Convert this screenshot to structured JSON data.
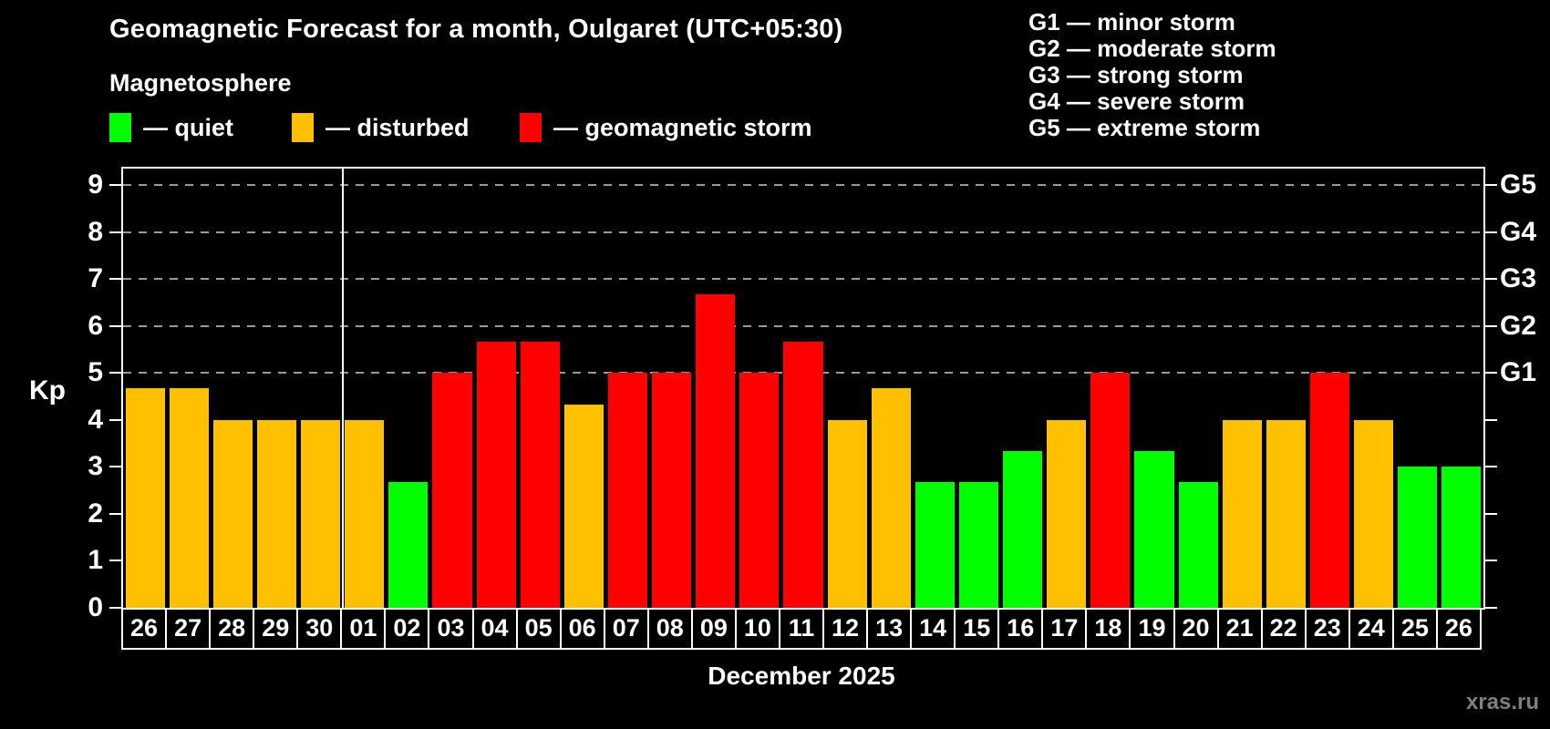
{
  "header": {
    "title": "Geomagnetic Forecast for a month, Oulgaret (UTC+05:30)",
    "subtitle": "Magnetosphere"
  },
  "legend": {
    "items": [
      {
        "state": "quiet",
        "label": "— quiet",
        "color": "#00ff00"
      },
      {
        "state": "disturbed",
        "label": "— disturbed",
        "color": "#ffc000"
      },
      {
        "state": "storm",
        "label": "— geomagnetic storm",
        "color": "#ff0000"
      }
    ]
  },
  "g_legend": {
    "items": [
      {
        "text": "G1 — minor storm"
      },
      {
        "text": "G2 — moderate storm"
      },
      {
        "text": "G3 — strong storm"
      },
      {
        "text": "G4 — severe storm"
      },
      {
        "text": "G5 — extreme storm"
      }
    ]
  },
  "chart_data": {
    "type": "bar",
    "title": "Geomagnetic Forecast for a month, Oulgaret (UTC+05:30)",
    "subtitle": "Magnetosphere",
    "ylabel": "Kp",
    "xlabel": "December 2025",
    "ylim": [
      0,
      9.35
    ],
    "yticks": [
      0,
      1,
      2,
      3,
      4,
      5,
      6,
      7,
      8,
      9
    ],
    "gridlines_at": [
      5,
      6,
      7,
      8,
      9
    ],
    "grid_style": "dashed-horizontal",
    "legend_position": "top-left",
    "categories": [
      "26",
      "27",
      "28",
      "29",
      "30",
      "01",
      "02",
      "03",
      "04",
      "05",
      "06",
      "07",
      "08",
      "09",
      "10",
      "11",
      "12",
      "13",
      "14",
      "15",
      "16",
      "17",
      "18",
      "19",
      "20",
      "21",
      "22",
      "23",
      "24",
      "25",
      "26"
    ],
    "values": [
      4.67,
      4.67,
      4,
      4,
      4,
      4,
      2.67,
      5,
      5.67,
      5.67,
      4.33,
      5,
      5,
      6.67,
      5,
      5.67,
      4,
      4.67,
      2.67,
      2.67,
      3.33,
      4,
      5,
      3.33,
      2.67,
      4,
      4,
      5,
      4,
      3,
      3
    ],
    "states": [
      "disturbed",
      "disturbed",
      "disturbed",
      "disturbed",
      "disturbed",
      "disturbed",
      "quiet",
      "storm",
      "storm",
      "storm",
      "disturbed",
      "storm",
      "storm",
      "storm",
      "storm",
      "storm",
      "disturbed",
      "disturbed",
      "quiet",
      "quiet",
      "quiet",
      "disturbed",
      "storm",
      "quiet",
      "quiet",
      "disturbed",
      "disturbed",
      "storm",
      "disturbed",
      "quiet",
      "quiet"
    ],
    "state_colors": {
      "quiet": "#00ff00",
      "disturbed": "#ffc000",
      "storm": "#ff0000"
    },
    "right_axis_labels": [
      {
        "kp": 5,
        "label": "G1"
      },
      {
        "kp": 6,
        "label": "G2"
      },
      {
        "kp": 7,
        "label": "G3"
      },
      {
        "kp": 8,
        "label": "G4"
      },
      {
        "kp": 9,
        "label": "G5"
      }
    ],
    "month_separator_after_index": 4,
    "axis_color": "#ffffff",
    "gridline_color": "#9a9a9a",
    "background_color": "#000000"
  },
  "footer": {
    "watermark": "xras.ru"
  }
}
